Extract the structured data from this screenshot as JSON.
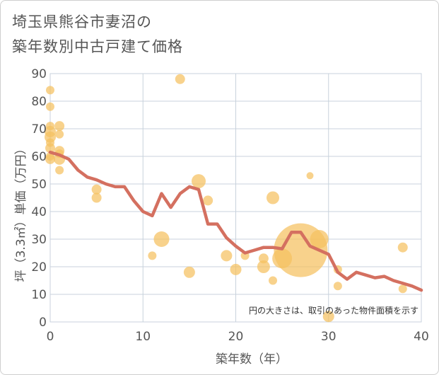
{
  "title": {
    "line1": "埼玉県熊谷市妻沼の",
    "line2": "築年数別中古戸建て価格"
  },
  "chart_data": {
    "type": "scatter+line",
    "title": "埼玉県熊谷市妻沼の築年数別中古戸建て価格",
    "xlabel": "築年数（年）",
    "ylabel": "坪（3.3㎡）単価（万円）",
    "xlim": [
      0,
      40
    ],
    "ylim": [
      0,
      90
    ],
    "xticks": [
      "0",
      "10",
      "20",
      "30",
      "40"
    ],
    "yticks": [
      "0",
      "10",
      "20",
      "30",
      "40",
      "50",
      "60",
      "70",
      "80",
      "90"
    ],
    "grid": true,
    "note": "円の大きさは、取引のあった物件面積を示す",
    "colors": {
      "bubble": "#f5c060",
      "line": "#d47060",
      "grid": "#c8d2dc"
    },
    "scatter": [
      {
        "x": 0,
        "y": 84,
        "s": 6
      },
      {
        "x": 0,
        "y": 78,
        "s": 6
      },
      {
        "x": 0,
        "y": 71,
        "s": 6
      },
      {
        "x": 0,
        "y": 69,
        "s": 8
      },
      {
        "x": 0,
        "y": 67,
        "s": 8
      },
      {
        "x": 0,
        "y": 65,
        "s": 6
      },
      {
        "x": 0,
        "y": 63,
        "s": 7
      },
      {
        "x": 0,
        "y": 60,
        "s": 6
      },
      {
        "x": 0,
        "y": 59,
        "s": 7
      },
      {
        "x": 1,
        "y": 71,
        "s": 7
      },
      {
        "x": 1,
        "y": 68,
        "s": 6
      },
      {
        "x": 1,
        "y": 62,
        "s": 7
      },
      {
        "x": 1,
        "y": 61,
        "s": 6
      },
      {
        "x": 1,
        "y": 59,
        "s": 8
      },
      {
        "x": 1,
        "y": 55,
        "s": 6
      },
      {
        "x": 5,
        "y": 48,
        "s": 7
      },
      {
        "x": 5,
        "y": 45,
        "s": 7
      },
      {
        "x": 11,
        "y": 24,
        "s": 6
      },
      {
        "x": 12,
        "y": 30,
        "s": 11
      },
      {
        "x": 14,
        "y": 88,
        "s": 7
      },
      {
        "x": 15,
        "y": 18,
        "s": 8
      },
      {
        "x": 16,
        "y": 51,
        "s": 10
      },
      {
        "x": 17,
        "y": 44,
        "s": 7
      },
      {
        "x": 19,
        "y": 24,
        "s": 8
      },
      {
        "x": 20,
        "y": 19,
        "s": 8
      },
      {
        "x": 21,
        "y": 24,
        "s": 6
      },
      {
        "x": 23,
        "y": 20,
        "s": 9
      },
      {
        "x": 23,
        "y": 23,
        "s": 7
      },
      {
        "x": 24,
        "y": 45,
        "s": 9
      },
      {
        "x": 24,
        "y": 15,
        "s": 6
      },
      {
        "x": 25,
        "y": 23,
        "s": 14
      },
      {
        "x": 27,
        "y": 26,
        "s": 38
      },
      {
        "x": 28,
        "y": 53,
        "s": 5
      },
      {
        "x": 29,
        "y": 30,
        "s": 13
      },
      {
        "x": 30,
        "y": 2,
        "s": 8
      },
      {
        "x": 31,
        "y": 19,
        "s": 6
      },
      {
        "x": 31,
        "y": 13,
        "s": 6
      },
      {
        "x": 38,
        "y": 27,
        "s": 7
      },
      {
        "x": 38,
        "y": 12,
        "s": 6
      }
    ],
    "line": {
      "x": [
        0,
        1,
        2,
        3,
        4,
        5,
        6,
        7,
        8,
        9,
        10,
        11,
        12,
        13,
        14,
        15,
        16,
        17,
        18,
        19,
        20,
        21,
        22,
        23,
        24,
        25,
        26,
        27,
        28,
        29,
        30,
        31,
        32,
        33,
        34,
        35,
        36,
        37,
        38,
        39,
        40
      ],
      "y": [
        61.5,
        60.5,
        59,
        55,
        52.5,
        51.5,
        50,
        49,
        49,
        44,
        40,
        38.5,
        46.5,
        41.5,
        46.5,
        49,
        48,
        35.5,
        35.5,
        30.5,
        27.5,
        25,
        26,
        27,
        27,
        26.5,
        32.5,
        32.5,
        27.5,
        26,
        24.5,
        18,
        15.5,
        18,
        17,
        16,
        16.5,
        15,
        14,
        13,
        11.5
      ]
    }
  }
}
